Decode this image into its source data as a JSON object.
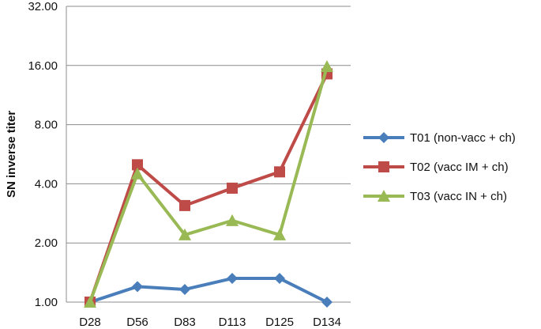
{
  "chart_data": {
    "type": "line",
    "y_scale": "log2",
    "ylabel": "SN inverse titer",
    "xlabel": "",
    "title": "",
    "ylim": [
      1,
      32
    ],
    "y_ticks": [
      1,
      2,
      4,
      8,
      16,
      32
    ],
    "y_tick_labels": [
      "1.00",
      "2.00",
      "4.00",
      "8.00",
      "16.00",
      "32.00"
    ],
    "categories": [
      "D28",
      "D56",
      "D83",
      "D113",
      "D125",
      "D134"
    ],
    "grid": "horizontal",
    "legend_position": "right",
    "series": [
      {
        "name": "T01 (non-vacc + ch)",
        "color": "#4a7ebb",
        "marker": "diamond",
        "values": [
          1.0,
          1.2,
          1.16,
          1.32,
          1.32,
          1.0
        ]
      },
      {
        "name": "T02 (vacc IM + ch)",
        "color": "#be4b48",
        "marker": "square",
        "values": [
          1.0,
          5.0,
          3.1,
          3.8,
          4.6,
          14.5
        ]
      },
      {
        "name": "T03 (vacc IN + ch)",
        "color": "#98b954",
        "marker": "triangle",
        "values": [
          1.0,
          4.5,
          2.2,
          2.6,
          2.2,
          15.8
        ]
      }
    ]
  }
}
